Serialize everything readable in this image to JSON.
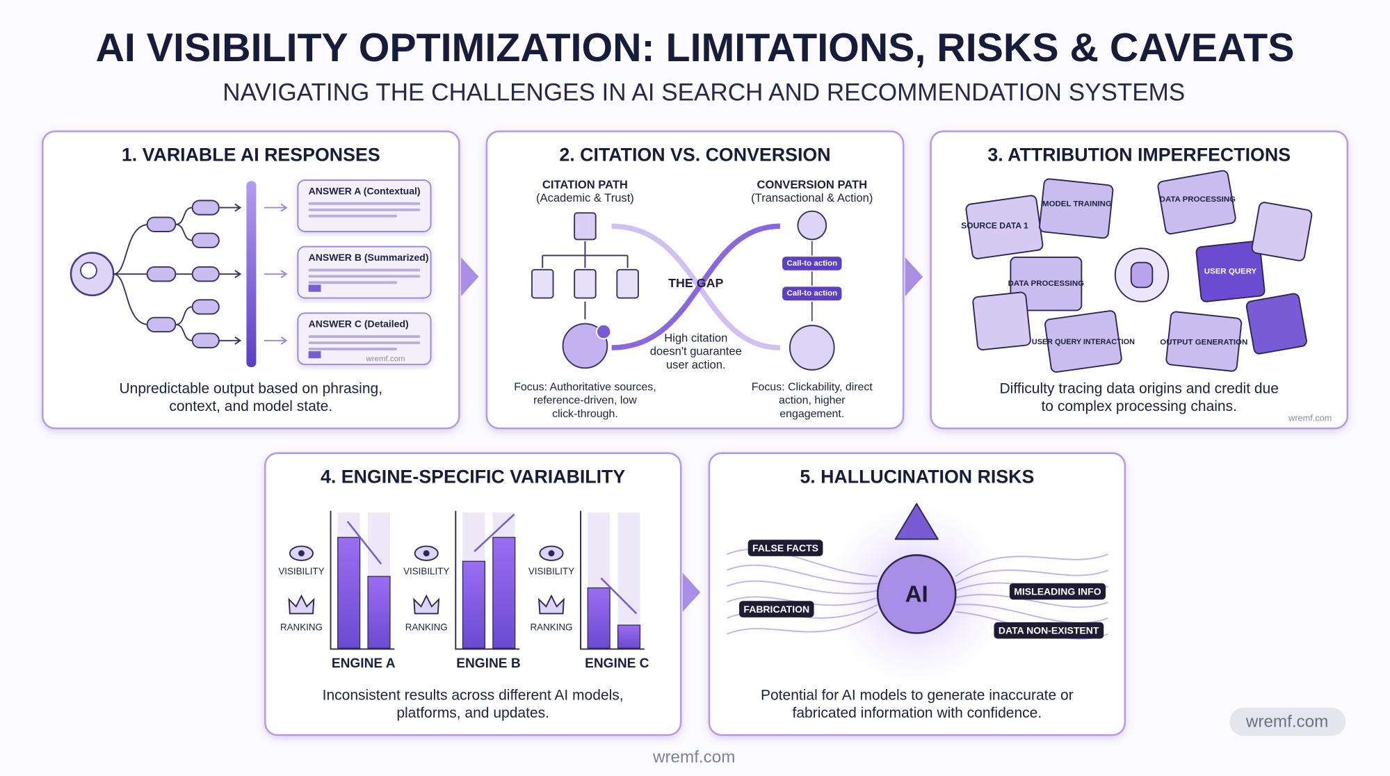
{
  "header": {
    "title": "AI VISIBILITY OPTIMIZATION: LIMITATIONS, RISKS & CAVEATS",
    "subtitle": "NAVIGATING THE CHALLENGES IN AI SEARCH AND RECOMMENDATION SYSTEMS"
  },
  "panels": [
    {
      "title": "1. VARIABLE AI RESPONSES",
      "labels": [
        "ANSWER A (Contextual)",
        "ANSWER B (Summarized)",
        "ANSWER C (Detailed)",
        "wremf.com"
      ],
      "caption": [
        "Unpredictable output based on phrasing,",
        "context, and model state."
      ]
    },
    {
      "title": "2. CITATION VS. CONVERSION",
      "labels": [
        "CITATION PATH",
        "(Academic & Trust)",
        "CONVERSION PATH",
        "(Transactional & Action)",
        "THE GAP",
        "Call-to action",
        "Call-to action",
        "High citation",
        "doesn't guarantee",
        "user action.",
        "Focus: Authoritative sources,",
        "reference-driven, low",
        "click-through.",
        "Focus: Clickability, direct",
        "action, higher",
        "engagement."
      ]
    },
    {
      "title": "3. ATTRIBUTION IMPERFECTIONS",
      "labels": [
        "SOURCE DATA 1",
        "MODEL TRAINING",
        "DATA PROCESSING",
        "DATA PROCESSING",
        "USER QUERY",
        "USER QUERY INTERACTION",
        "OUTPUT GENERATION",
        "wremf.com"
      ],
      "caption": [
        "Difficulty tracing data origins and credit due",
        "to complex processing chains."
      ]
    },
    {
      "title": "4. ENGINE-SPECIFIC VARIABILITY",
      "labels": [
        "VISIBILITY",
        "VISIBILITY",
        "VISIBILITY",
        "RANKING",
        "RANKING",
        "RANKING",
        "ENGINE A",
        "ENGINE B",
        "ENGINE C"
      ],
      "caption": [
        "Inconsistent results across different AI models,",
        "platforms, and updates."
      ]
    },
    {
      "title": "5. HALLUCINATION RISKS",
      "labels": [
        "FALSE FACTS",
        "FABRICATION",
        "MISLEADING INFO",
        "DATA NON-EXISTENT",
        "AI"
      ],
      "caption": [
        "Potential for AI models to generate inaccurate or",
        "fabricated information with confidence."
      ]
    }
  ],
  "footer": {
    "watermark": "wremf.com",
    "badge": "wremf.com"
  }
}
